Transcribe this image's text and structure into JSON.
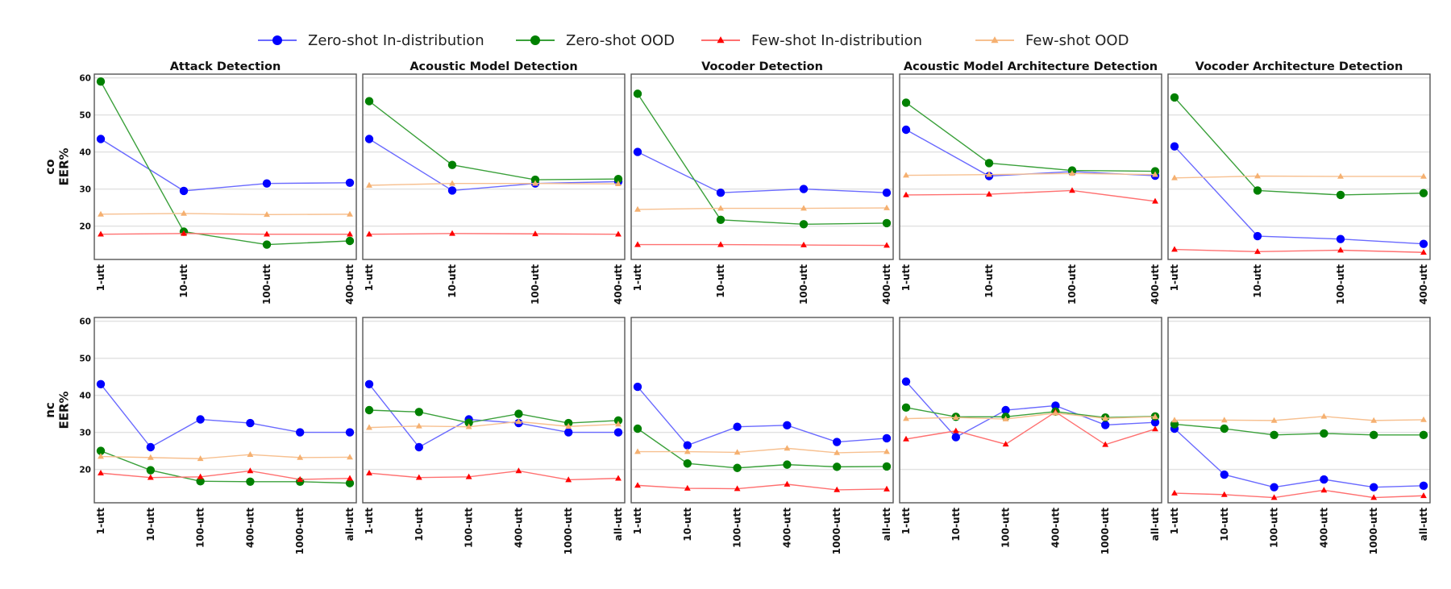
{
  "legend": [
    {
      "name": "Zero-shot In-distribution",
      "color": "#0000ff",
      "marker": "circle",
      "lineColor": "#6a6aff",
      "opacity": 1
    },
    {
      "name": "Zero-shot OOD",
      "color": "#008000",
      "marker": "circle",
      "lineColor": "#3aa03a",
      "opacity": 1
    },
    {
      "name": "Few-shot In-distribution",
      "color": "#ff0000",
      "marker": "triangle",
      "lineColor": "#ff7070",
      "opacity": 1
    },
    {
      "name": "Few-shot OOD",
      "color": "#f5b070",
      "marker": "triangle",
      "lineColor": "#f7c090",
      "opacity": 1
    }
  ],
  "rows": [
    {
      "label_top": "co",
      "label_bottom": "EER%"
    },
    {
      "label_top": "nc",
      "label_bottom": "EER%"
    }
  ],
  "panel_titles": [
    "Attack Detection",
    "Acoustic Model Detection",
    "Vocoder Detection",
    "Acoustic Model Architecture Detection",
    "Vocoder Architecture Detection"
  ],
  "y_ticks": [
    20,
    30,
    40,
    50,
    60
  ],
  "chart_data": [
    {
      "type": "line",
      "row": 0,
      "col": 0,
      "title": "Attack Detection",
      "ylabel": "co EER%",
      "ylim": [
        11,
        61
      ],
      "categories": [
        "1-utt",
        "10-utt",
        "100-utt",
        "400-utt"
      ],
      "series": [
        {
          "name": "Zero-shot In-distribution",
          "values": [
            43.5,
            29.5,
            31.5,
            31.7
          ]
        },
        {
          "name": "Zero-shot OOD",
          "values": [
            59.0,
            18.5,
            15.0,
            16.0
          ]
        },
        {
          "name": "Few-shot In-distribution",
          "values": [
            17.8,
            18.0,
            17.8,
            17.8
          ]
        },
        {
          "name": "Few-shot OOD",
          "values": [
            23.2,
            23.4,
            23.1,
            23.2
          ]
        }
      ]
    },
    {
      "type": "line",
      "row": 0,
      "col": 1,
      "title": "Acoustic Model Detection",
      "ylabel": "co EER%",
      "ylim": [
        11,
        61
      ],
      "categories": [
        "1-utt",
        "10-utt",
        "100-utt",
        "400-utt"
      ],
      "series": [
        {
          "name": "Zero-shot In-distribution",
          "values": [
            43.5,
            29.6,
            31.5,
            32.0
          ]
        },
        {
          "name": "Zero-shot OOD",
          "values": [
            53.7,
            36.5,
            32.5,
            32.7
          ]
        },
        {
          "name": "Few-shot In-distribution",
          "values": [
            17.8,
            18.0,
            17.9,
            17.8
          ]
        },
        {
          "name": "Few-shot OOD",
          "values": [
            31.0,
            31.5,
            31.5,
            31.4
          ]
        }
      ]
    },
    {
      "type": "line",
      "row": 0,
      "col": 2,
      "title": "Vocoder Detection",
      "ylabel": "co EER%",
      "ylim": [
        11,
        61
      ],
      "categories": [
        "1-utt",
        "10-utt",
        "100-utt",
        "400-utt"
      ],
      "series": [
        {
          "name": "Zero-shot In-distribution",
          "values": [
            40.0,
            29.0,
            30.0,
            29.0
          ]
        },
        {
          "name": "Zero-shot OOD",
          "values": [
            55.7,
            21.7,
            20.5,
            20.8
          ]
        },
        {
          "name": "Few-shot In-distribution",
          "values": [
            15.0,
            15.0,
            14.9,
            14.8
          ]
        },
        {
          "name": "Few-shot OOD",
          "values": [
            24.5,
            24.8,
            24.8,
            24.9
          ]
        }
      ]
    },
    {
      "type": "line",
      "row": 0,
      "col": 3,
      "title": "Acoustic Model Architecture Detection",
      "ylabel": "co EER%",
      "ylim": [
        11,
        61
      ],
      "categories": [
        "1-utt",
        "10-utt",
        "100-utt",
        "400-utt"
      ],
      "series": [
        {
          "name": "Zero-shot In-distribution",
          "values": [
            46.0,
            33.5,
            34.7,
            33.6
          ]
        },
        {
          "name": "Zero-shot OOD",
          "values": [
            53.3,
            37.0,
            35.0,
            34.8
          ]
        },
        {
          "name": "Few-shot In-distribution",
          "values": [
            28.4,
            28.6,
            29.6,
            26.7
          ]
        },
        {
          "name": "Few-shot OOD",
          "values": [
            33.7,
            33.9,
            34.2,
            33.9
          ]
        }
      ]
    },
    {
      "type": "line",
      "row": 0,
      "col": 4,
      "title": "Vocoder Architecture Detection",
      "ylabel": "co EER%",
      "ylim": [
        11,
        61
      ],
      "categories": [
        "1-utt",
        "10-utt",
        "100-utt",
        "400-utt"
      ],
      "series": [
        {
          "name": "Zero-shot In-distribution",
          "values": [
            41.5,
            17.3,
            16.5,
            15.2
          ]
        },
        {
          "name": "Zero-shot OOD",
          "values": [
            54.7,
            29.6,
            28.4,
            28.9
          ]
        },
        {
          "name": "Few-shot In-distribution",
          "values": [
            13.7,
            13.1,
            13.5,
            12.9
          ]
        },
        {
          "name": "Few-shot OOD",
          "values": [
            33.0,
            33.5,
            33.4,
            33.4
          ]
        }
      ]
    },
    {
      "type": "line",
      "row": 1,
      "col": 0,
      "title": "",
      "ylabel": "nc EER%",
      "ylim": [
        11,
        61
      ],
      "categories": [
        "1-utt",
        "10-utt",
        "100-utt",
        "400-utt",
        "1000-utt",
        "all-utt"
      ],
      "series": [
        {
          "name": "Zero-shot In-distribution",
          "values": [
            43.0,
            26.0,
            33.5,
            32.5,
            30.0,
            30.0
          ]
        },
        {
          "name": "Zero-shot OOD",
          "values": [
            25.0,
            19.8,
            16.8,
            16.7,
            16.7,
            16.3
          ]
        },
        {
          "name": "Few-shot In-distribution",
          "values": [
            19.0,
            17.8,
            18.0,
            19.6,
            17.3,
            17.6
          ]
        },
        {
          "name": "Few-shot OOD",
          "values": [
            23.5,
            23.2,
            22.9,
            24.0,
            23.2,
            23.3
          ]
        }
      ]
    },
    {
      "type": "line",
      "row": 1,
      "col": 1,
      "title": "",
      "ylabel": "nc EER%",
      "ylim": [
        11,
        61
      ],
      "categories": [
        "1-utt",
        "10-utt",
        "100-utt",
        "400-utt",
        "1000-utt",
        "all-utt"
      ],
      "series": [
        {
          "name": "Zero-shot In-distribution",
          "values": [
            43.0,
            26.0,
            33.5,
            32.5,
            30.0,
            30.0
          ]
        },
        {
          "name": "Zero-shot OOD",
          "values": [
            36.0,
            35.5,
            32.6,
            35.0,
            32.5,
            33.2
          ]
        },
        {
          "name": "Few-shot In-distribution",
          "values": [
            19.0,
            17.8,
            18.0,
            19.6,
            17.2,
            17.6
          ]
        },
        {
          "name": "Few-shot OOD",
          "values": [
            31.3,
            31.7,
            31.5,
            32.9,
            31.6,
            32.2
          ]
        }
      ]
    },
    {
      "type": "line",
      "row": 1,
      "col": 2,
      "title": "",
      "ylabel": "nc EER%",
      "ylim": [
        11,
        61
      ],
      "categories": [
        "1-utt",
        "10-utt",
        "100-utt",
        "400-utt",
        "1000-utt",
        "all-utt"
      ],
      "series": [
        {
          "name": "Zero-shot In-distribution",
          "values": [
            42.3,
            26.5,
            31.5,
            31.9,
            27.4,
            28.4
          ]
        },
        {
          "name": "Zero-shot OOD",
          "values": [
            31.0,
            21.6,
            20.4,
            21.3,
            20.7,
            20.8
          ]
        },
        {
          "name": "Few-shot In-distribution",
          "values": [
            15.7,
            14.9,
            14.8,
            16.0,
            14.5,
            14.7
          ]
        },
        {
          "name": "Few-shot OOD",
          "values": [
            24.8,
            24.8,
            24.6,
            25.7,
            24.5,
            24.8
          ]
        }
      ]
    },
    {
      "type": "line",
      "row": 1,
      "col": 3,
      "title": "",
      "ylabel": "nc EER%",
      "ylim": [
        11,
        61
      ],
      "categories": [
        "1-utt",
        "10-utt",
        "100-utt",
        "400-utt",
        "1000-utt",
        "all-utt"
      ],
      "series": [
        {
          "name": "Zero-shot In-distribution",
          "values": [
            43.7,
            28.7,
            36.0,
            37.2,
            32.0,
            32.7
          ]
        },
        {
          "name": "Zero-shot OOD",
          "values": [
            36.7,
            34.2,
            34.2,
            35.6,
            34.0,
            34.3
          ]
        },
        {
          "name": "Few-shot In-distribution",
          "values": [
            28.2,
            30.4,
            26.8,
            35.5,
            26.7,
            30.9
          ]
        },
        {
          "name": "Few-shot OOD",
          "values": [
            33.7,
            34.0,
            33.6,
            35.2,
            33.8,
            34.2
          ]
        }
      ]
    },
    {
      "type": "line",
      "row": 1,
      "col": 4,
      "title": "",
      "ylabel": "nc EER%",
      "ylim": [
        11,
        61
      ],
      "categories": [
        "1-utt",
        "10-utt",
        "100-utt",
        "400-utt",
        "1000-utt",
        "all-utt"
      ],
      "series": [
        {
          "name": "Zero-shot In-distribution",
          "values": [
            31.0,
            18.6,
            15.2,
            17.3,
            15.2,
            15.6
          ]
        },
        {
          "name": "Zero-shot OOD",
          "values": [
            32.2,
            31.0,
            29.3,
            29.7,
            29.3,
            29.3
          ]
        },
        {
          "name": "Few-shot In-distribution",
          "values": [
            13.6,
            13.2,
            12.4,
            14.4,
            12.4,
            12.9
          ]
        },
        {
          "name": "Few-shot OOD",
          "values": [
            33.3,
            33.3,
            33.2,
            34.3,
            33.2,
            33.4
          ]
        }
      ]
    }
  ]
}
